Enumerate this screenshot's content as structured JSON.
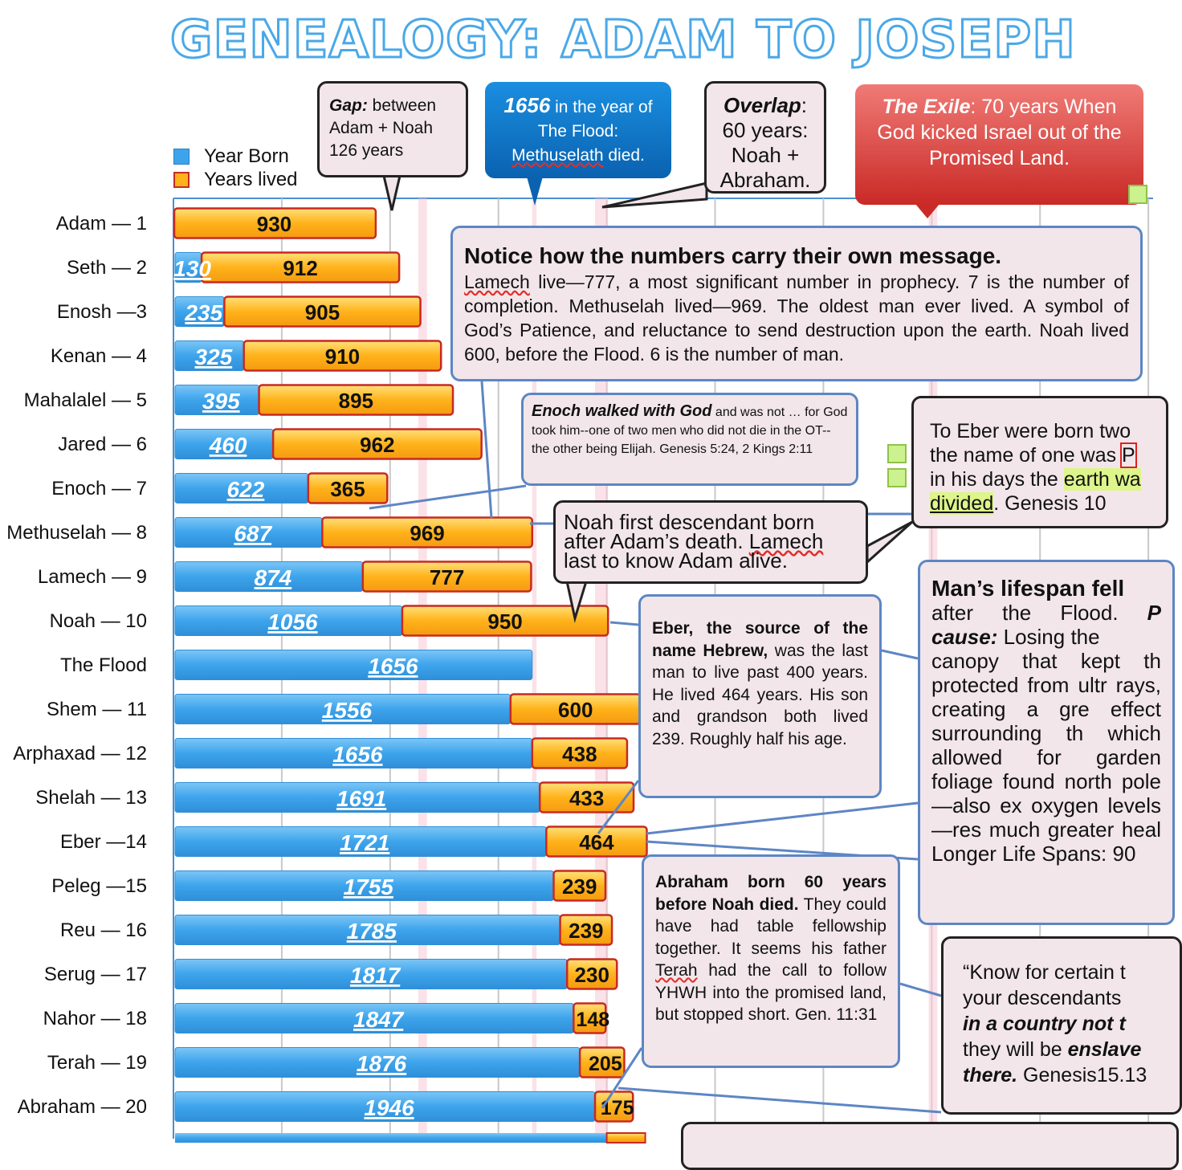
{
  "title": "GENEALOGY:  ADAM TO JOSEPH",
  "legend": {
    "year_born": "Year Born",
    "years_lived": "Years lived"
  },
  "colors": {
    "born": "#3da4ec",
    "lived": "#ffb21a",
    "lived_border": "#c72a22",
    "title": "#4aa8e8",
    "callout_bg": "#f2e6ea"
  },
  "chart_data": {
    "type": "bar",
    "stacked": true,
    "orientation": "horizontal",
    "categories": [
      "Adam — 1",
      "Seth — 2",
      "Enosh —3",
      "Kenan — 4",
      "Mahalalel — 5",
      "Jared — 6",
      "Enoch — 7",
      "Methuselah — 8",
      "Lamech — 9",
      "Noah — 10",
      "The Flood",
      "Shem — 11",
      "Arphaxad — 12",
      "Shelah — 13",
      "Eber —14",
      "Peleg —15",
      "Reu — 16",
      "Serug — 17",
      "Nahor — 18",
      "Terah — 19",
      "Abraham — 20"
    ],
    "series": [
      {
        "name": "Year Born",
        "values": [
          0,
          130,
          235,
          325,
          395,
          460,
          622,
          687,
          874,
          1056,
          1656,
          1556,
          1656,
          1691,
          1721,
          1755,
          1785,
          1817,
          1847,
          1876,
          1946
        ]
      },
      {
        "name": "Years lived",
        "values": [
          930,
          912,
          905,
          910,
          895,
          962,
          365,
          969,
          777,
          950,
          null,
          600,
          438,
          433,
          464,
          239,
          239,
          230,
          148,
          205,
          175
        ]
      }
    ],
    "born_labels": [
      "",
      "130",
      "235",
      "325",
      "395",
      "460",
      "622",
      "687",
      "874",
      "1056",
      "1656",
      "1556",
      "1656",
      "1691",
      "1721",
      "1755",
      "1785",
      "1817",
      "1847",
      "1876",
      "1946"
    ],
    "lived_labels": [
      "930",
      "912",
      "905",
      "910",
      "895",
      "962",
      "365",
      "969",
      "777",
      "950",
      "",
      "600",
      "438",
      "433",
      "464",
      "239",
      "239",
      "230",
      "148",
      "205",
      "175"
    ],
    "xlim": [
      0,
      5200
    ],
    "grid": true
  },
  "callouts": {
    "gap": {
      "bold": "Gap:",
      "text": " between Adam + Noah 126 years"
    },
    "flood": {
      "num": "1656",
      "line1": " in the year of The Flood:",
      "name": "Methuselath",
      "line2": " died."
    },
    "overlap": {
      "bold": "Overlap",
      "text": ": 60 years: Noah + Abraham."
    },
    "exile": {
      "bold": "The Exile",
      "text": ": 70 years When God kicked Israel out of the Promised Land."
    },
    "notice": {
      "heading": "Notice how the numbers carry their own message.",
      "name": "Lamech",
      "body": " live—777, a most significant number in prophecy. 7 is the number of completion. Methuselah lived—969. The oldest man ever lived. A symbol of God’s Patience, and reluctance to send destruction upon the earth. Noah lived 600, before the Flood. 6 is the number of man."
    },
    "enoch": {
      "bold": "Enoch walked with God",
      "text": " and was not … for God took him--one of two men who did not die in the OT--the other being Elijah. Genesis 5:24, 2 Kings 2:11"
    },
    "noah": {
      "text1": "Noah first descendant born after Adam’s death. ",
      "name": "Lamech",
      "text2": " last to know Adam alive."
    },
    "eber_peleg": {
      "t1": "To Eber were born two",
      "t2": "the name of one was ",
      "t2b": "P",
      "t3": "in his days the ",
      "t3b": "earth wa",
      "t4": "divided",
      "t5": ".  Genesis 10"
    },
    "eber": {
      "bold": "Eber, the source of the name Hebrew,",
      "text": " was the last man to live past 400 years. He lived 464 years. His son and grandson both lived 239. Roughly half his age."
    },
    "lifespan": {
      "heading": "Man’s lifespan fell",
      "l2": "after the Flood. ",
      "l2b": "P",
      "l3b": "cause:",
      "l3": " Losing the",
      "rest": "canopy that kept th protected from ultr rays, creating a gre effect surrounding th which allowed for garden foliage found north pole—also ex oxygen levels—res much greater heal Longer Life Spans: 90"
    },
    "abraham": {
      "bold": "Abraham born 60 years before Noah died.",
      "text1": " They could have had table fellowship together. It seems his father ",
      "name": "Terah",
      "text2": " had the call to follow YHWH into the promised land, but stopped short. Gen. 11:31"
    },
    "know": {
      "t1": "“Know for certain t",
      "t2": "your descendants",
      "t3": "in a country not t",
      "t4": "they will be ",
      "t4b": "enslave",
      "t5b": "there.",
      "t5": " Genesis15.13"
    }
  }
}
